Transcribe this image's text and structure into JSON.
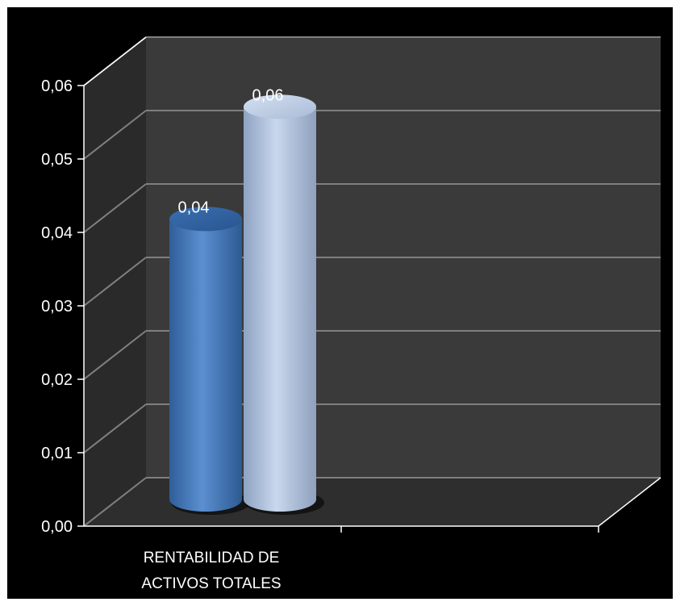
{
  "chart_data": {
    "type": "bar",
    "style": "3d-cylinder",
    "categories": [
      "RENTABILIDAD DE ACTIVOS TOTALES"
    ],
    "category_label_lines": [
      "RENTABILIDAD DE",
      "ACTIVOS TOTALES"
    ],
    "series": [
      {
        "values": [
          0.04
        ],
        "data_label": "0,04",
        "color": "#4F81BD"
      },
      {
        "values": [
          0.056
        ],
        "data_label": "0,06",
        "color": "#B8CCE4"
      }
    ],
    "y_ticks": [
      "0,00",
      "0,01",
      "0,02",
      "0,03",
      "0,04",
      "0,05",
      "0,06"
    ],
    "ylim": [
      0,
      0.06
    ],
    "grid": true,
    "legend": "none",
    "colors": {
      "background": "#000000",
      "wall": "#3a3a3a",
      "floor": "#2e2e2e",
      "gridline": "#7f7f7f",
      "text": "#ffffff"
    }
  }
}
